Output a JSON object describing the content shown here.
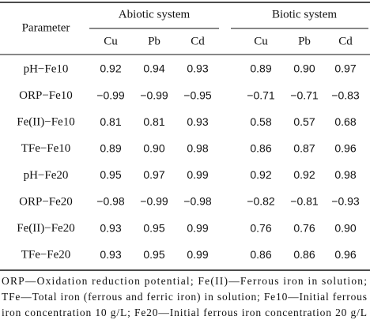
{
  "header": {
    "parameter": "Parameter",
    "groups": [
      "Abiotic system",
      "Biotic system"
    ],
    "subheaders": [
      "Cu",
      "Pb",
      "Cd",
      "Cu",
      "Pb",
      "Cd"
    ]
  },
  "table": {
    "rows": [
      [
        "pH−Fe10",
        "0.92",
        "0.94",
        "0.93",
        "0.89",
        "0.90",
        "0.97"
      ],
      [
        "ORP−Fe10",
        "−0.99",
        "−0.99",
        "−0.95",
        "−0.71",
        "−0.71",
        "−0.83"
      ],
      [
        "Fe(II)−Fe10",
        "0.81",
        "0.81",
        "0.93",
        "0.58",
        "0.57",
        "0.68"
      ],
      [
        "TFe−Fe10",
        "0.89",
        "0.90",
        "0.98",
        "0.86",
        "0.87",
        "0.96"
      ],
      [
        "pH−Fe20",
        "0.95",
        "0.97",
        "0.99",
        "0.92",
        "0.92",
        "0.98"
      ],
      [
        "ORP−Fe20",
        "−0.98",
        "−0.99",
        "−0.98",
        "−0.82",
        "−0.81",
        "−0.93"
      ],
      [
        "Fe(II)−Fe20",
        "0.93",
        "0.95",
        "0.99",
        "0.76",
        "0.76",
        "0.90"
      ],
      [
        "TFe−Fe20",
        "0.93",
        "0.95",
        "0.99",
        "0.86",
        "0.86",
        "0.96"
      ]
    ]
  },
  "footnote": [
    "ORP—Oxidation reduction potential; Fe(II)—Ferrous iron in solution;",
    "TFe—Total iron (ferrous and ferric iron) in solution; Fe10—Initial ferrous",
    "iron concentration 10 g/L; Fe20—Initial ferrous iron concentration 20 g/L"
  ]
}
